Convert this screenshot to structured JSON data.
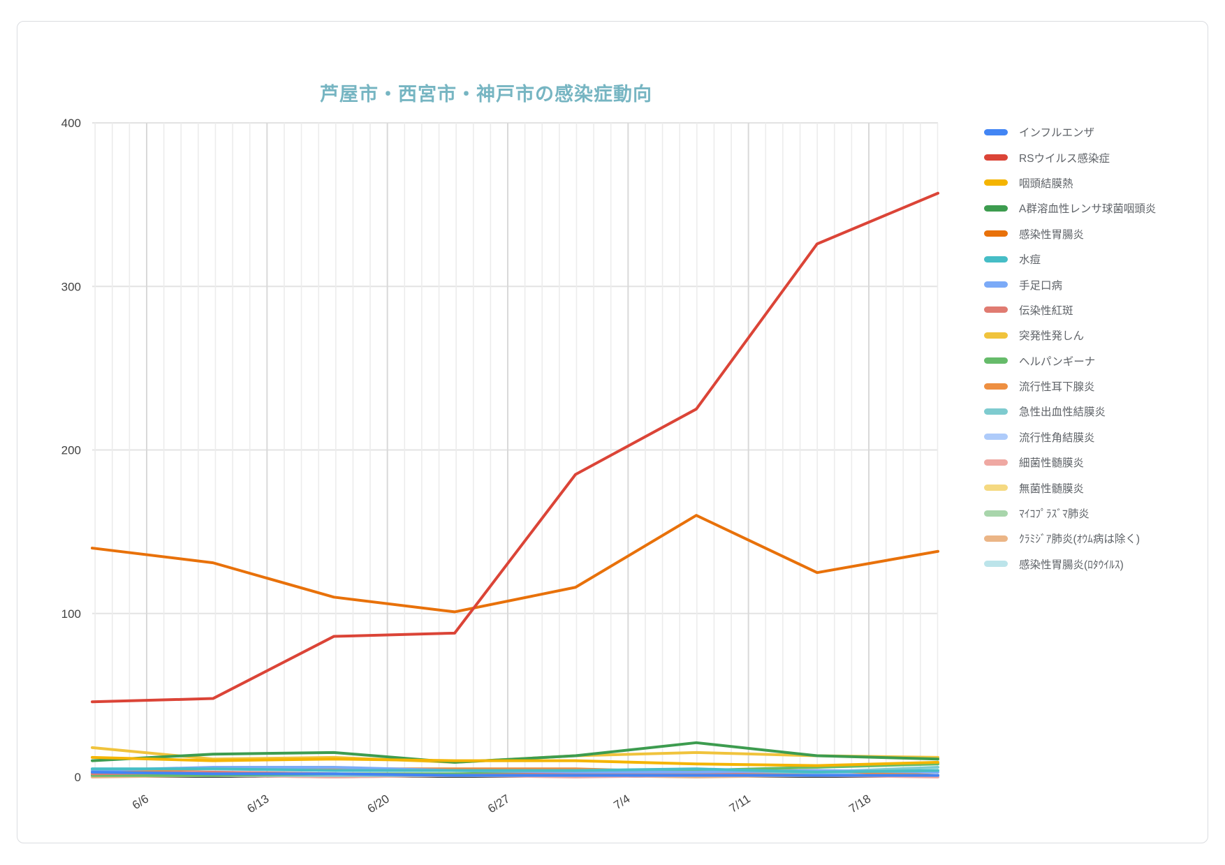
{
  "title": "芦屋市・西宮市・神戸市の感染症動向",
  "title_color": "#76b5c2",
  "chart_data": {
    "type": "line",
    "title": "芦屋市・西宮市・神戸市の感染症動向",
    "xlabel": "",
    "ylabel": "",
    "ylim": [
      0,
      400
    ],
    "yticks": [
      0,
      100,
      200,
      300,
      400
    ],
    "grid": "daily vertical + horizontal at yticks",
    "legend_position": "right",
    "x_tick_labels": [
      "6/6",
      "6/13",
      "6/20",
      "6/27",
      "7/4",
      "7/11",
      "7/18"
    ],
    "points_per_series": 8,
    "series": [
      {
        "name": "インフルエンザ",
        "color": "#4285f4",
        "values": [
          3,
          2,
          2,
          1,
          1,
          1,
          1,
          1
        ]
      },
      {
        "name": "RSウイルス感染症",
        "color": "#db4437",
        "values": [
          46,
          48,
          86,
          88,
          185,
          225,
          326,
          357
        ]
      },
      {
        "name": "咽頭結膜熱",
        "color": "#f4b400",
        "values": [
          12,
          10,
          11,
          10,
          10,
          8,
          7,
          9
        ]
      },
      {
        "name": "A群溶血性レンサ球菌咽頭炎",
        "color": "#3d9c4f",
        "values": [
          10,
          14,
          15,
          9,
          13,
          21,
          13,
          11
        ]
      },
      {
        "name": "感染性胃腸炎",
        "color": "#e8710a",
        "values": [
          140,
          131,
          110,
          101,
          116,
          160,
          125,
          138
        ]
      },
      {
        "name": "水痘",
        "color": "#46bdc6",
        "values": [
          5,
          5,
          4,
          4,
          4,
          5,
          3,
          4
        ]
      },
      {
        "name": "手足口病",
        "color": "#7baaf7",
        "values": [
          4,
          6,
          6,
          4,
          3,
          3,
          4,
          3
        ]
      },
      {
        "name": "伝染性紅斑",
        "color": "#e07b71",
        "values": [
          2,
          3,
          2,
          1,
          2,
          2,
          1,
          1
        ]
      },
      {
        "name": "突発性発しん",
        "color": "#f0c33c",
        "values": [
          18,
          11,
          12,
          9,
          13,
          15,
          13,
          12
        ]
      },
      {
        "name": "ヘルパンギーナ",
        "color": "#66bb6a",
        "values": [
          1,
          1,
          2,
          2,
          3,
          4,
          6,
          8
        ]
      },
      {
        "name": "流行性耳下腺炎",
        "color": "#ee8f41",
        "values": [
          3,
          5,
          5,
          5,
          5,
          3,
          4,
          1
        ]
      },
      {
        "name": "急性出血性結膜炎",
        "color": "#7ecbcf",
        "values": [
          1,
          1,
          1,
          1,
          1,
          2,
          3,
          6
        ]
      },
      {
        "name": "流行性角結膜炎",
        "color": "#aecbfa",
        "values": [
          2,
          3,
          2,
          1,
          2,
          2,
          2,
          1
        ]
      },
      {
        "name": "細菌性髄膜炎",
        "color": "#efa8a2",
        "values": [
          1,
          1,
          0,
          1,
          0,
          1,
          1,
          0
        ]
      },
      {
        "name": "無菌性髄膜炎",
        "color": "#f5d981",
        "values": [
          2,
          2,
          1,
          2,
          1,
          1,
          2,
          1
        ]
      },
      {
        "name": "ﾏｲｺﾌﾟﾗｽﾞﾏ肺炎",
        "color": "#a8d5ab",
        "values": [
          1,
          2,
          1,
          1,
          1,
          2,
          1,
          1
        ]
      },
      {
        "name": "ｸﾗﾐｼﾞｱ肺炎(ｵｳﾑ病は除く)",
        "color": "#ebb586",
        "values": [
          0,
          1,
          0,
          1,
          1,
          0,
          1,
          1
        ]
      },
      {
        "name": "感染性胃腸炎(ﾛﾀｳｲﾙｽ)",
        "color": "#bce4ea",
        "values": [
          1,
          1,
          1,
          1,
          1,
          1,
          1,
          1
        ]
      }
    ]
  },
  "layout_colors": {
    "grid_daily": "#ececec",
    "grid_weekly": "#d9d9d9",
    "grid_h": "#e3e3e3",
    "axis_line": "#333333"
  }
}
